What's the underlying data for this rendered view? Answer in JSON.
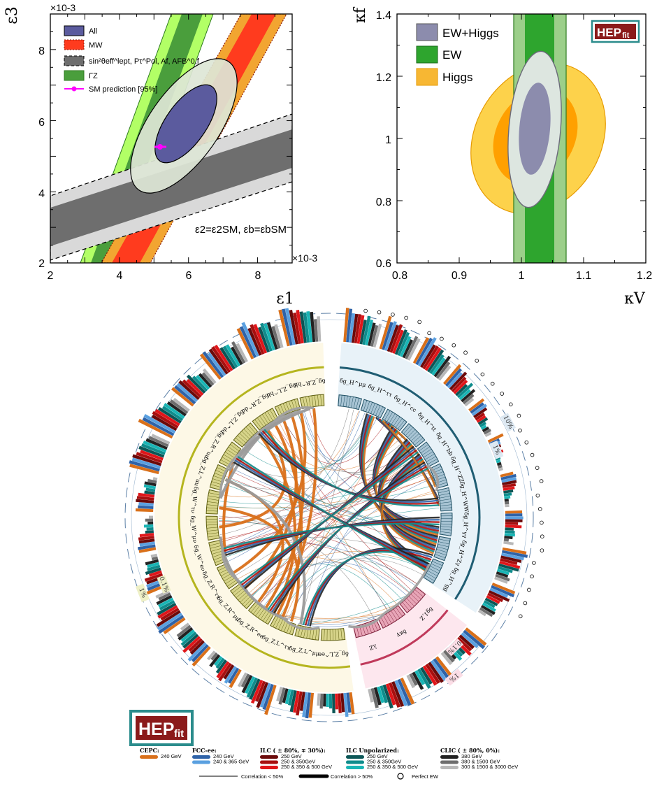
{
  "chart_data": [
    {
      "type": "contour",
      "xlabel": "ε1",
      "ylabel": "ε3",
      "x_exponent": "×10-3",
      "y_exponent": "×10-3",
      "xlim": [
        2,
        9
      ],
      "ylim": [
        2,
        9
      ],
      "xticks": [
        "2",
        "4",
        "6",
        "8"
      ],
      "yticks": [
        "2",
        "4",
        "6",
        "8"
      ],
      "legend": [
        {
          "label": "All",
          "color": "#5b5b9e"
        },
        {
          "label": "MW",
          "color": "#ff3b1e"
        },
        {
          "label": "sin²θeff^lept, Pτ^Pol, Af, AFB^0,f",
          "color": "#6e6e6e"
        },
        {
          "label": "ΓZ",
          "color": "#4a9e3c"
        },
        {
          "label": "SM prediction [95%]",
          "color": "#ff00ff"
        }
      ],
      "annotation": "ε2=ε2SM, εb=εbSM",
      "sm_point": {
        "x": 5.25,
        "y": 5.3
      }
    },
    {
      "type": "contour",
      "xlabel": "κV",
      "ylabel": "κf",
      "xlim": [
        0.8,
        1.2
      ],
      "ylim": [
        0.6,
        1.4
      ],
      "xticks": [
        "0.8",
        "0.9",
        "1",
        "1.1",
        "1.2"
      ],
      "yticks": [
        "0.6",
        "0.8",
        "1",
        "1.2",
        "1.4"
      ],
      "legend": [
        {
          "label": "EW+Higgs",
          "color": "#8c8cad"
        },
        {
          "label": "EW",
          "color": "#2ea52e"
        },
        {
          "label": "Higgs",
          "color": "#f7b733"
        }
      ],
      "logo": {
        "main": "HEP",
        "sub": "fit"
      }
    },
    {
      "type": "circular",
      "sections": {
        "higgs": [
          "δg_H^μμ",
          "δg_H^ττ",
          "δg_H^cc",
          "δg_H^tt",
          "δg_H^bb",
          "δg_H^ZZ",
          "δg_H^WW",
          "δg_H^γγ",
          "δg_H^Zγ",
          "δg_H^gg"
        ],
        "tgc": [
          "δg1,Z",
          "δκγ",
          "λZ"
        ],
        "ew": [
          "δg_Z,L^ee",
          "δg_Z,L^μμ",
          "δg_Z,L^ττ",
          "δg_Z,R^ee",
          "δg_Z,R^μμ",
          "δg_Z,R^ττ",
          "δg_W^eν",
          "δg_W^μν",
          "δg_W^τν",
          "δg_Z,L^uu",
          "δg_Z,R^uu",
          "δg_Z,L^dd",
          "δg_Z,R^dd",
          "δg_Z,L^bb",
          "δg_Z,R^bb"
        ]
      },
      "scale_labels": {
        "higgs": [
          "10%",
          "1%"
        ],
        "tgc": [
          "0.1%",
          "1%"
        ],
        "ew": [
          "0.1%",
          "1%"
        ]
      },
      "legend_groups": [
        {
          "title": "CEPC:",
          "items": [
            {
              "label": "240 GeV",
              "color": "#d9701a"
            }
          ]
        },
        {
          "title": "FCC-ee:",
          "items": [
            {
              "label": "240 GeV",
              "color": "#2f63a8"
            },
            {
              "label": "240 & 365 GeV",
              "color": "#5aa0e0"
            }
          ]
        },
        {
          "title": "ILC ( ± 80%, ∓ 30%):",
          "items": [
            {
              "label": "250 GeV",
              "color": "#6b0a0a"
            },
            {
              "label": "250 & 350GeV",
              "color": "#a80f0f"
            },
            {
              "label": "250 & 350 & 500 GeV",
              "color": "#e0161a"
            }
          ]
        },
        {
          "title": "ILC Unpolarized:",
          "items": [
            {
              "label": "250 GeV",
              "color": "#0b5656"
            },
            {
              "label": "250 & 350GeV",
              "color": "#0f8c8c"
            },
            {
              "label": "250 & 350 & 500 GeV",
              "color": "#19b5b5"
            }
          ]
        },
        {
          "title": "CLIC ( ± 80%, 0%):",
          "items": [
            {
              "label": "380 GeV",
              "color": "#222222"
            },
            {
              "label": "380 & 1500 GeV",
              "color": "#6d6d6d"
            },
            {
              "label": "300 & 1500 & 3000 GeV",
              "color": "#b8b8b8"
            }
          ]
        }
      ],
      "line_legend": [
        "Correlation < 50%",
        "Correlation > 50%",
        "Perfect EW"
      ],
      "logo": {
        "main": "HEP",
        "sub": "fit"
      }
    }
  ]
}
